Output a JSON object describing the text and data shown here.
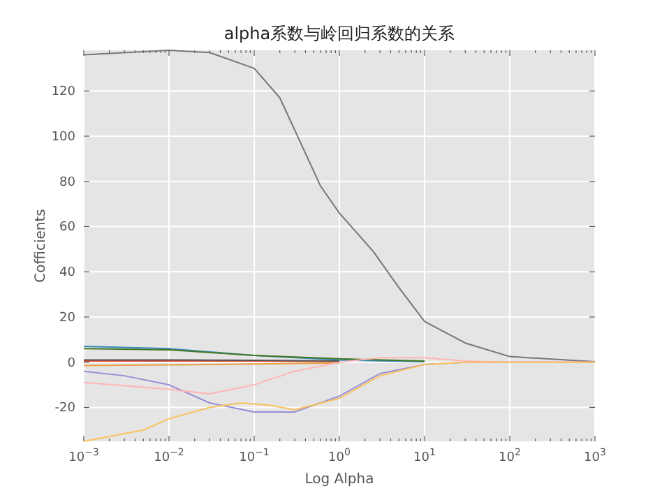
{
  "chart_data": {
    "type": "line",
    "title": "alpha系数与岭回归系数的关系",
    "xlabel": "Log Alpha",
    "ylabel": "Cofficients",
    "log": "x",
    "grid": true,
    "xlim": [
      0.001,
      1000
    ],
    "ylim": [
      -35,
      138
    ],
    "xticks": [
      {
        "value": 0.001,
        "label": "10$^{−3}$"
      },
      {
        "value": 0.01,
        "label": "10$^{−2}$"
      },
      {
        "value": 0.1,
        "label": "10$^{−1}$"
      },
      {
        "value": 1,
        "label": "10$^{0}$"
      },
      {
        "value": 10,
        "label": "10$^{1}$"
      },
      {
        "value": 100,
        "label": "10$^{2}$"
      },
      {
        "value": 1000,
        "label": "10$^{3}$"
      }
    ],
    "yticks": [
      -20,
      0,
      20,
      40,
      60,
      80,
      100,
      120
    ],
    "series": [
      {
        "color": "#777777",
        "x": [
          0.001,
          0.01,
          0.03,
          0.1,
          0.2,
          0.6,
          1,
          2.5,
          5,
          10,
          30,
          100,
          1000
        ],
        "values": [
          136,
          138,
          137,
          130,
          117,
          78,
          66,
          49,
          33,
          18,
          8.5,
          2.5,
          0.2
        ]
      },
      {
        "color": "#348abd",
        "x": [
          0.001,
          0.01,
          0.1,
          1,
          10
        ],
        "values": [
          7,
          6,
          3,
          1,
          0.2
        ]
      },
      {
        "color": "#467821",
        "x": [
          0.001,
          0.01,
          0.1,
          1,
          10
        ],
        "values": [
          6,
          5.5,
          3,
          1.5,
          0.5
        ]
      },
      {
        "color": "#e24a33",
        "x": [
          0.001,
          0.01,
          0.1,
          1
        ],
        "values": [
          0.5,
          0.5,
          0.5,
          0.3
        ]
      },
      {
        "color": "#555555",
        "x": [
          0.001,
          0.01,
          0.1,
          1
        ],
        "values": [
          1,
          1,
          0.8,
          0.5
        ]
      },
      {
        "color": "#e8a040",
        "x": [
          0.001,
          0.01,
          0.1,
          1
        ],
        "values": [
          -1.5,
          -1.2,
          -0.8,
          -0.3
        ]
      },
      {
        "color": "#988ed5",
        "x": [
          0.001,
          0.003,
          0.01,
          0.03,
          0.1,
          0.3,
          1,
          3,
          10,
          30,
          100,
          1000
        ],
        "values": [
          -4,
          -6,
          -10,
          -18,
          -22,
          -22,
          -15,
          -5,
          -1,
          0,
          0,
          0
        ]
      },
      {
        "color": "#ffb5b8",
        "x": [
          0.001,
          0.01,
          0.03,
          0.1,
          0.3,
          1,
          3,
          10,
          30,
          100,
          1000
        ],
        "values": [
          -9,
          -12,
          -14,
          -10,
          -4,
          0,
          2,
          2,
          0.5,
          0,
          0
        ]
      },
      {
        "color": "#fbc15e",
        "x": [
          0.001,
          0.005,
          0.01,
          0.03,
          0.07,
          0.15,
          0.3,
          1,
          3,
          10,
          30,
          100,
          1000
        ],
        "values": [
          -35,
          -30,
          -25,
          -20,
          -18,
          -19,
          -21,
          -16,
          -6,
          -1,
          0,
          0,
          0
        ]
      }
    ]
  }
}
